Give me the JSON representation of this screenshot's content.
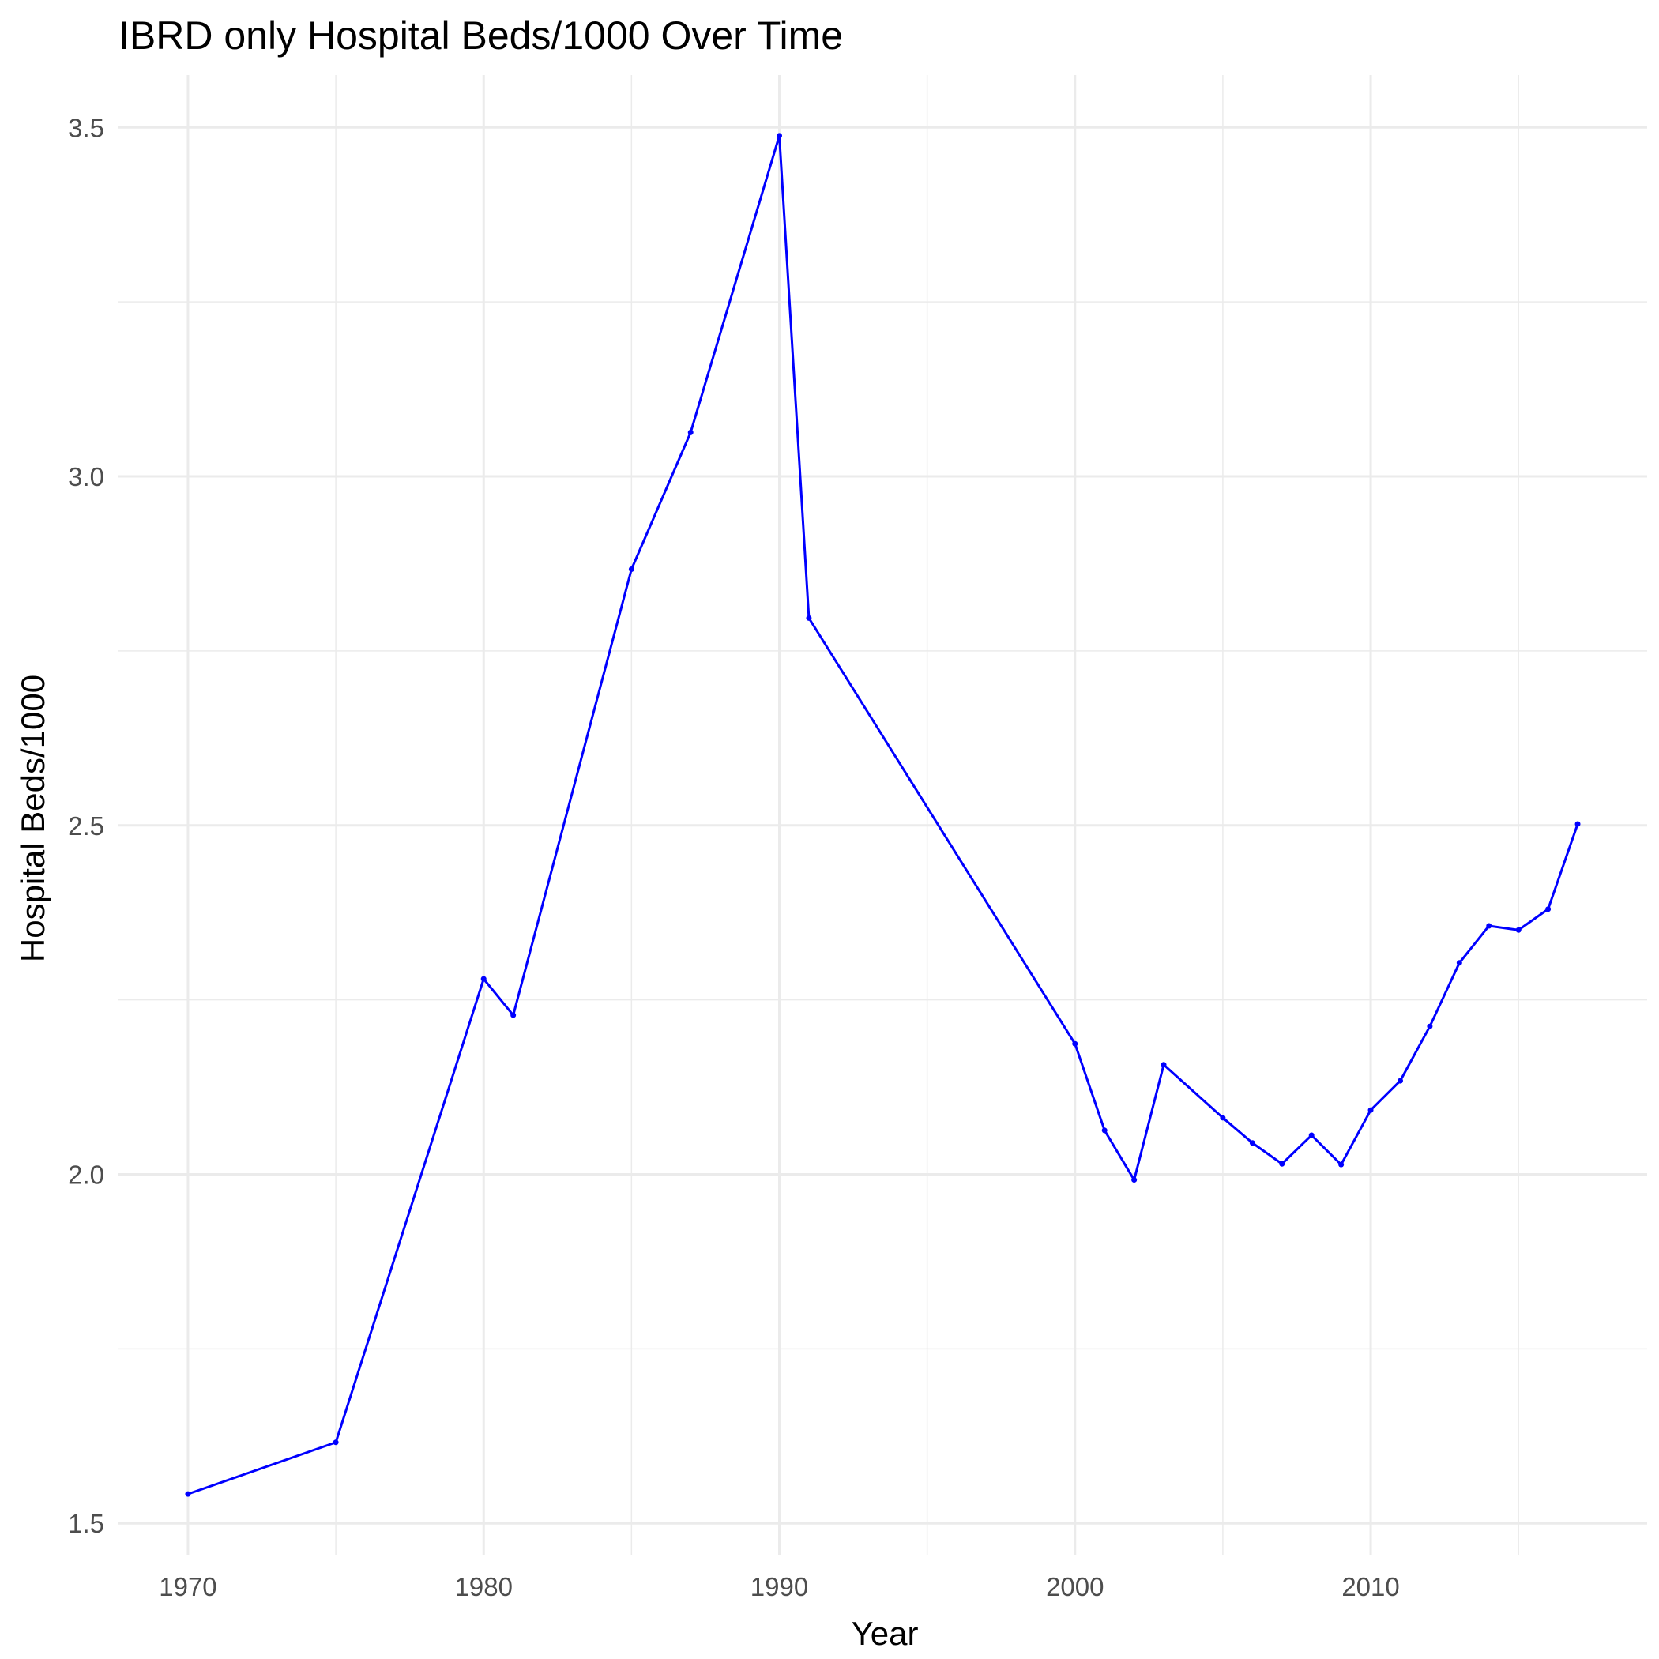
{
  "chart_data": {
    "type": "line",
    "title": "IBRD only Hospital Beds/1000 Over Time",
    "xlabel": "Year",
    "ylabel": "Hospital Beds/1000",
    "xlim": [
      1967.65,
      2019.35
    ],
    "ylim": [
      1.455,
      3.575
    ],
    "x_ticks": [
      1970,
      1980,
      1990,
      2000,
      2010
    ],
    "y_ticks": [
      1.5,
      2.0,
      2.5,
      3.0,
      3.5
    ],
    "x_tick_labels": [
      "1970",
      "1980",
      "1990",
      "2000",
      "2010"
    ],
    "y_tick_labels": [
      "1.5",
      "2.0",
      "2.5",
      "3.0",
      "3.5"
    ],
    "grid": true,
    "legend": "none",
    "line_color": "#0000ff",
    "series": [
      {
        "x": [
          1970,
          1975,
          1980,
          1981,
          1985,
          1987,
          1990,
          1991,
          2000,
          2001,
          2002,
          2003,
          2005,
          2006,
          2007,
          2008,
          2009,
          2010,
          2011,
          2012,
          2013,
          2014,
          2015,
          2016,
          2017
        ],
        "y": [
          1.542,
          1.616,
          2.28,
          2.228,
          2.867,
          3.063,
          3.488,
          2.797,
          2.187,
          2.063,
          1.992,
          2.157,
          2.081,
          2.045,
          2.015,
          2.056,
          2.014,
          2.092,
          2.134,
          2.212,
          2.303,
          2.356,
          2.35,
          2.38,
          2.502
        ]
      }
    ]
  }
}
